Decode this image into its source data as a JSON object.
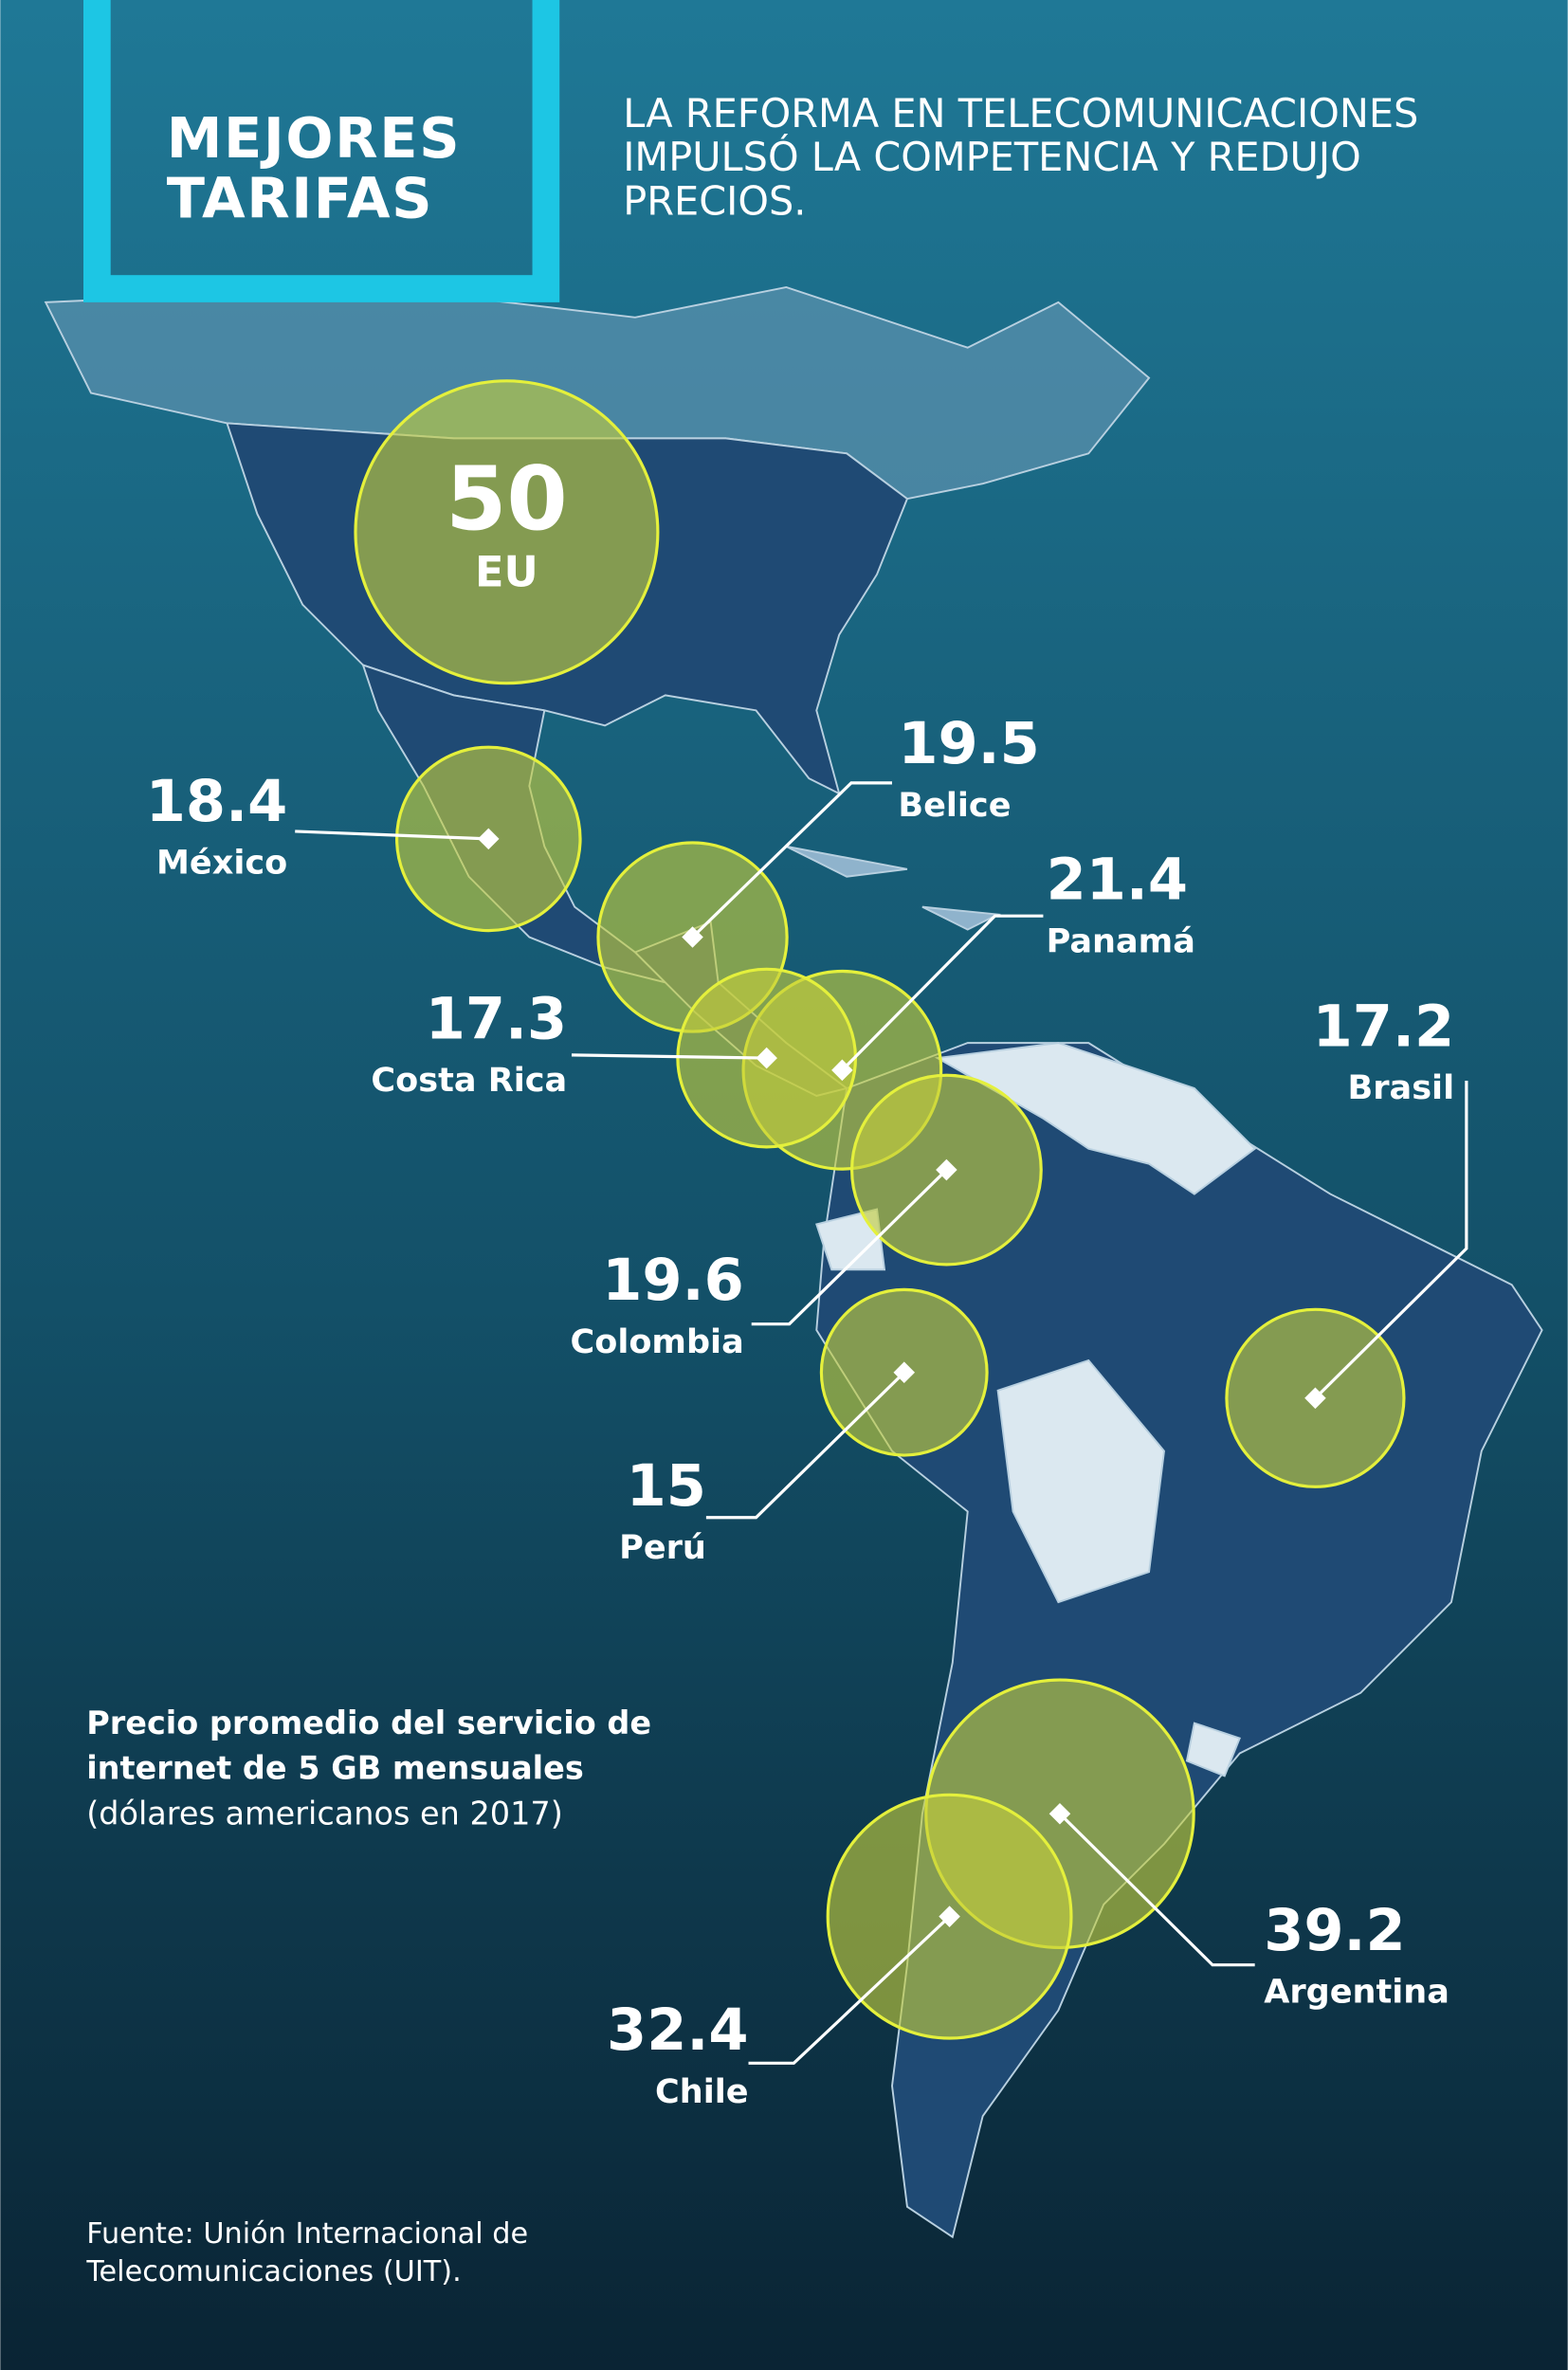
{
  "title": "MEJORES TARIFAS",
  "subtitle": "LA REFORMA EN TELECOMUNICACIONES IMPULSÓ LA COMPETENCIA Y REDUJO PRECIOS.",
  "chart_data": {
    "type": "bubble_map",
    "caption": "Precio promedio del servicio de internet de 5 GB mensuales",
    "unit": "(dólares americanos en 2017)",
    "categories": [
      "EU",
      "México",
      "Belice",
      "Panamá",
      "Costa Rica",
      "Colombia",
      "Perú",
      "Brasil",
      "Argentina",
      "Chile"
    ],
    "values": [
      50,
      18.4,
      19.5,
      21.4,
      17.3,
      19.6,
      15,
      17.2,
      39.2,
      32.4
    ],
    "color": "#c3cd3c"
  },
  "source": "Fuente: Unión Internacional de Telecomunicaciones (UIT)."
}
